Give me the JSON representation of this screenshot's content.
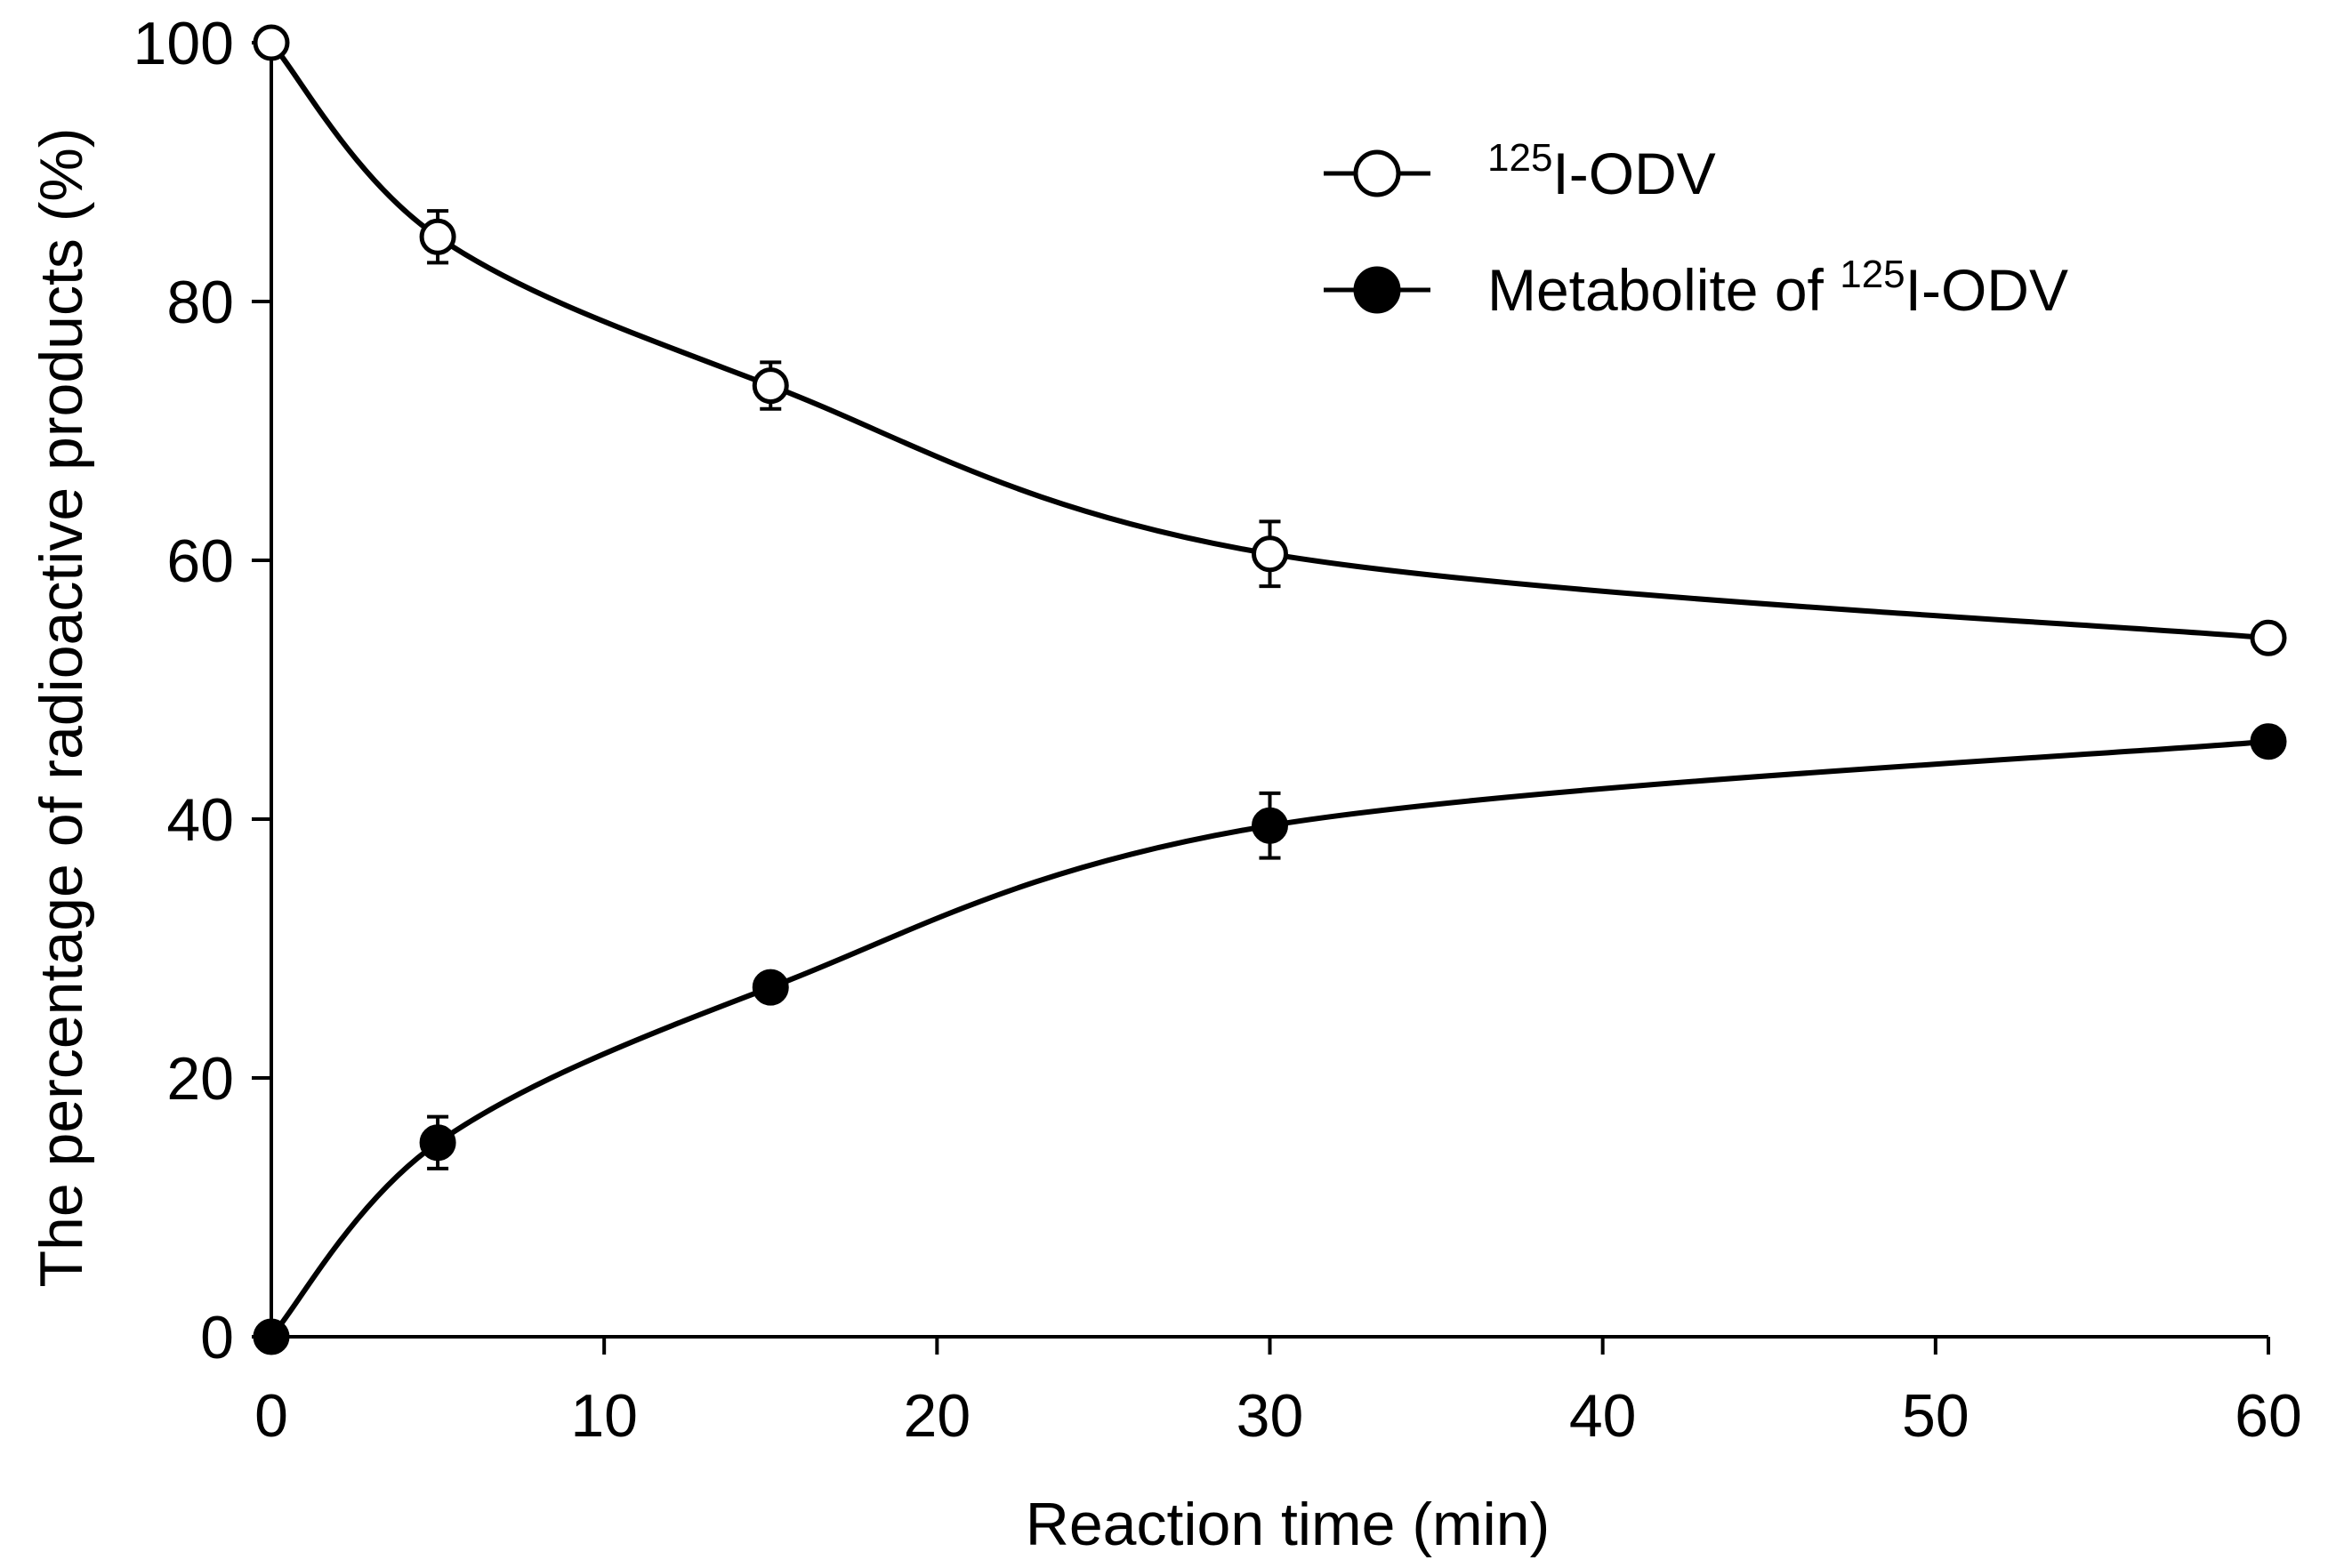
{
  "chart_data": {
    "type": "line",
    "title": "",
    "xlabel": "Reaction time (min)",
    "ylabel": "The percentage of radioactive products (%)",
    "x_ticks": [
      "0",
      "10",
      "20",
      "30",
      "40",
      "50",
      "60"
    ],
    "y_ticks": [
      "0",
      "20",
      "40",
      "60",
      "80",
      "100"
    ],
    "xlim": [
      0,
      60
    ],
    "ylim": [
      0,
      100
    ],
    "legend_position": "top-right",
    "series": [
      {
        "name": "125I-ODV",
        "label_sup": "125",
        "label_main": "I-ODV",
        "label_prefix": "",
        "marker": "open-circle",
        "x": [
          0,
          5,
          15,
          30,
          60
        ],
        "y": [
          100,
          85,
          73.5,
          60.5,
          54
        ],
        "err": [
          0,
          2,
          1.8,
          2.5,
          0
        ]
      },
      {
        "name": "Metabolite of 125I-ODV",
        "label_prefix": "Metabolite of ",
        "label_sup": "125",
        "label_main": "I-ODV",
        "marker": "filled-circle",
        "x": [
          0,
          5,
          15,
          30,
          60
        ],
        "y": [
          0,
          15,
          27,
          39.5,
          46
        ],
        "err": [
          0,
          2,
          1,
          2.5,
          0
        ]
      }
    ]
  }
}
